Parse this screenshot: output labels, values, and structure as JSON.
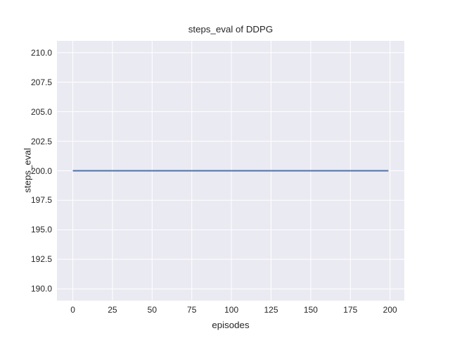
{
  "chart_data": {
    "type": "line",
    "title": "steps_eval of DDPG",
    "xlabel": "episodes",
    "ylabel": "steps_eval",
    "xlim": [
      -10,
      209
    ],
    "ylim": [
      189,
      211
    ],
    "x_ticks": [
      0,
      25,
      50,
      75,
      100,
      125,
      150,
      175,
      200
    ],
    "x_tick_labels": [
      "0",
      "25",
      "50",
      "75",
      "100",
      "125",
      "150",
      "175",
      "200"
    ],
    "y_ticks": [
      190.0,
      192.5,
      195.0,
      197.5,
      200.0,
      202.5,
      205.0,
      207.5,
      210.0
    ],
    "y_tick_labels": [
      "190.0",
      "192.5",
      "195.0",
      "197.5",
      "200.0",
      "202.5",
      "205.0",
      "207.5",
      "210.0"
    ],
    "grid": true,
    "legend": false,
    "series": [
      {
        "name": "steps_eval",
        "x": [
          0,
          199
        ],
        "y": [
          200,
          200
        ],
        "note": "constant value 200 for all episodes 0-199",
        "color": "#4c72b0",
        "line_width": 2
      }
    ],
    "style": {
      "figure_background": "#ffffff",
      "axes_background": "#eaeaf2",
      "grid_color": "#ffffff",
      "text_color": "#262626"
    }
  }
}
